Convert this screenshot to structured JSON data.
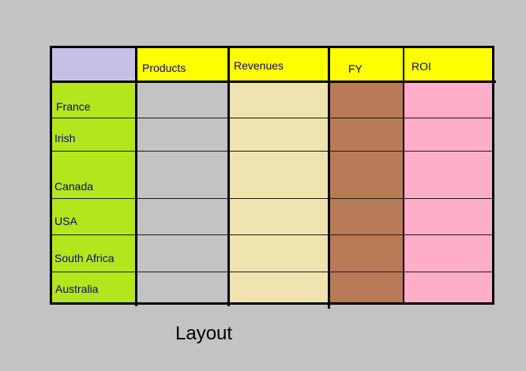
{
  "colors": {
    "background": "#c3c3c3",
    "corner_cell": "#c8bfe7",
    "header_row": "#ffff00",
    "row_label_column": "#b5e61d",
    "products_column": "#c3c3c3",
    "revenues_column": "#efe4b0",
    "fy_column": "#b97a57",
    "roi_column": "#ffaec9",
    "grid_lines": "#000000",
    "label_text": "#0a0a6e"
  },
  "table": {
    "headers": {
      "products": "Products",
      "revenues": "Revenues",
      "fy": "FY",
      "roi": "ROI"
    },
    "rows": [
      "France",
      "Irish",
      "Canada",
      "USA",
      "South Africa",
      "Australia"
    ]
  },
  "caption": "Layout"
}
